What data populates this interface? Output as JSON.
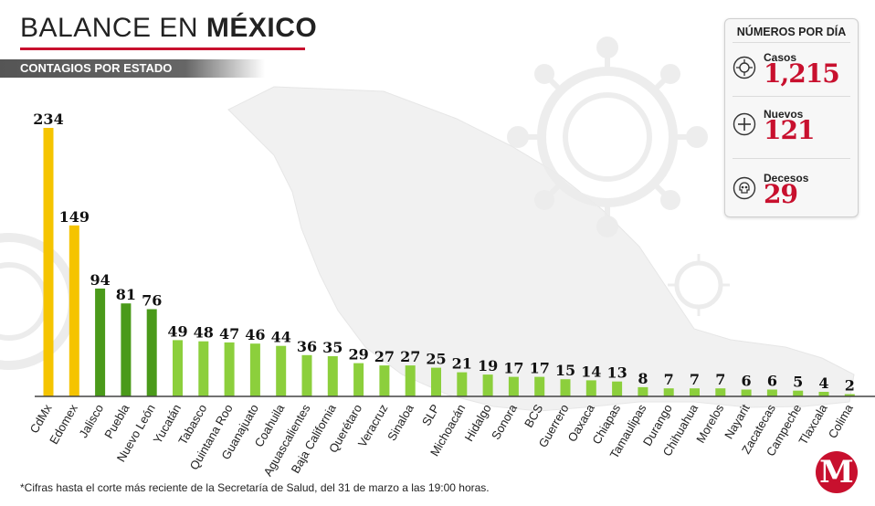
{
  "header": {
    "title_regular": "BALANCE EN",
    "title_bold": "MÉXICO",
    "subtitle": "CONTAGIOS POR ESTADO"
  },
  "panel": {
    "title": "NÚMEROS POR DÍA",
    "stats": [
      {
        "label": "Casos",
        "value": "1,215",
        "icon": "virus-icon"
      },
      {
        "label": "Nuevos",
        "value": "121",
        "icon": "plus-icon"
      },
      {
        "label": "Decesos",
        "value": "29",
        "icon": "skull-icon"
      }
    ]
  },
  "footnote": "*Cifras hasta el corte más reciente de la Secretaría de Salud, del 31 de marzo a las 19:00 horas.",
  "logo": {
    "letter": "M"
  },
  "colors": {
    "accent": "#c8102e",
    "bar_yellow": "#f5c400",
    "bar_dark_green": "#4a9a1a",
    "bar_light_green": "#8ccf3c"
  },
  "chart_data": {
    "type": "bar",
    "title": "",
    "xlabel": "",
    "ylabel": "",
    "ylim": [
      0,
      234
    ],
    "grid": false,
    "categories": [
      "CdMx",
      "Edomex",
      "Jalisco",
      "Puebla",
      "Nuevo León",
      "Yucatán",
      "Tabasco",
      "Quintana Roo",
      "Guanajuato",
      "Coahuila",
      "Aguascalientes",
      "Baja California",
      "Querétaro",
      "Veracruz",
      "Sinaloa",
      "SLP",
      "Michoacán",
      "Hidalgo",
      "Sonora",
      "BCS",
      "Guerrero",
      "Oaxaca",
      "Chiapas",
      "Tamaulipas",
      "Durango",
      "Chihuahua",
      "Morelos",
      "Nayarit",
      "Zacatecas",
      "Campeche",
      "Tlaxcala",
      "Colima"
    ],
    "values": [
      234,
      149,
      94,
      81,
      76,
      49,
      48,
      47,
      46,
      44,
      36,
      35,
      29,
      27,
      27,
      25,
      21,
      19,
      17,
      17,
      15,
      14,
      13,
      8,
      7,
      7,
      7,
      6,
      6,
      5,
      4,
      2
    ],
    "bar_color_groups": [
      "yellow",
      "yellow",
      "dark_green",
      "dark_green",
      "dark_green",
      "light_green",
      "light_green",
      "light_green",
      "light_green",
      "light_green",
      "light_green",
      "light_green",
      "light_green",
      "light_green",
      "light_green",
      "light_green",
      "light_green",
      "light_green",
      "light_green",
      "light_green",
      "light_green",
      "light_green",
      "light_green",
      "light_green",
      "light_green",
      "light_green",
      "light_green",
      "light_green",
      "light_green",
      "light_green",
      "light_green",
      "light_green"
    ]
  }
}
